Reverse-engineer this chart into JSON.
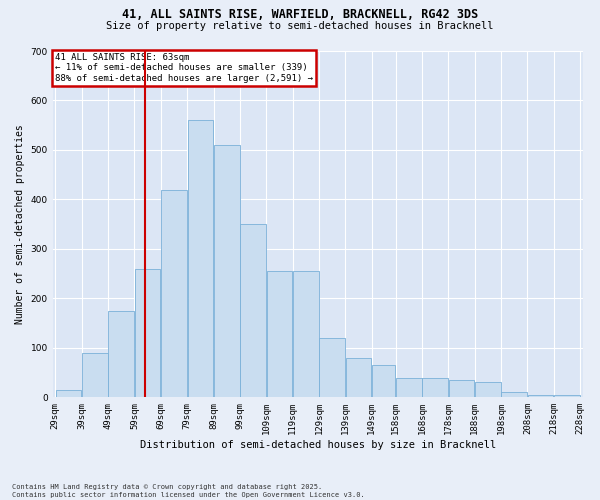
{
  "title_line1": "41, ALL SAINTS RISE, WARFIELD, BRACKNELL, RG42 3DS",
  "title_line2": "Size of property relative to semi-detached houses in Bracknell",
  "xlabel": "Distribution of semi-detached houses by size in Bracknell",
  "ylabel": "Number of semi-detached properties",
  "annotation_title": "41 ALL SAINTS RISE: 63sqm",
  "annotation_line2": "← 11% of semi-detached houses are smaller (339)",
  "annotation_line3": "88% of semi-detached houses are larger (2,591) →",
  "footnote_line1": "Contains HM Land Registry data © Crown copyright and database right 2025.",
  "footnote_line2": "Contains public sector information licensed under the Open Government Licence v3.0.",
  "property_size_sqm": 63,
  "bin_edges": [
    29,
    39,
    49,
    59,
    69,
    79,
    89,
    99,
    109,
    119,
    129,
    139,
    149,
    158,
    168,
    178,
    188,
    198,
    208,
    218,
    228
  ],
  "bar_heights": [
    15,
    90,
    175,
    260,
    420,
    560,
    510,
    350,
    255,
    255,
    120,
    80,
    65,
    40,
    40,
    35,
    30,
    10,
    5,
    5
  ],
  "tick_labels": [
    "29sqm",
    "39sqm",
    "49sqm",
    "59sqm",
    "69sqm",
    "79sqm",
    "89sqm",
    "99sqm",
    "109sqm",
    "119sqm",
    "129sqm",
    "139sqm",
    "149sqm",
    "158sqm",
    "168sqm",
    "178sqm",
    "188sqm",
    "198sqm",
    "208sqm",
    "218sqm",
    "228sqm"
  ],
  "bar_color": "#c9ddf0",
  "bar_edge_color": "#7ab0d8",
  "vline_color": "#cc0000",
  "bg_color": "#e8eef8",
  "plot_bg_color": "#dce6f5",
  "grid_color": "#ffffff",
  "annotation_box_color": "#cc0000",
  "ylim": [
    0,
    700
  ],
  "yticks": [
    0,
    100,
    200,
    300,
    400,
    500,
    600,
    700
  ]
}
